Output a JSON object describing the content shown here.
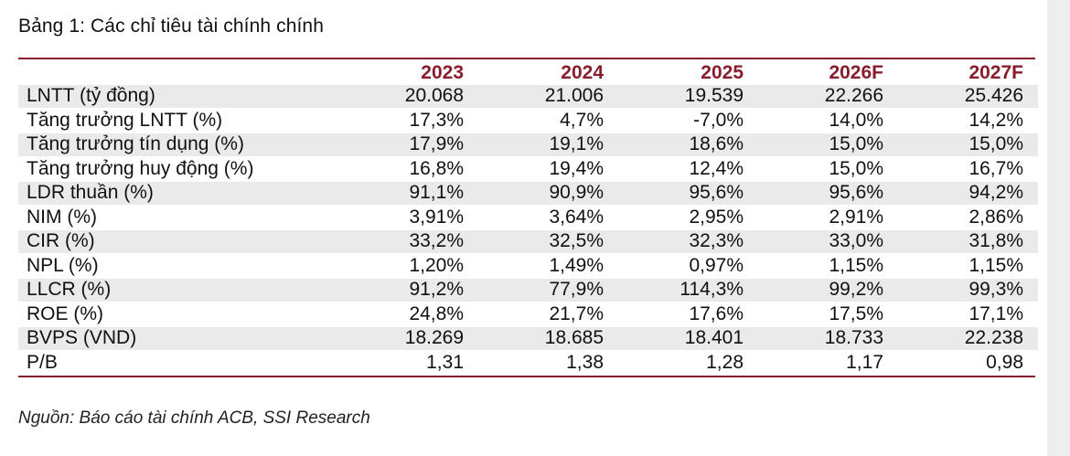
{
  "title": "Bảng 1: Các chỉ tiêu tài chính chính",
  "columns": [
    "2023",
    "2024",
    "2025",
    "2026F",
    "2027F"
  ],
  "rows": [
    {
      "label": "LNTT (tỷ đồng)",
      "values": [
        "20.068",
        "21.006",
        "19.539",
        "22.266",
        "25.426"
      ]
    },
    {
      "label": "Tăng trưởng LNTT (%)",
      "values": [
        "17,3%",
        "4,7%",
        "-7,0%",
        "14,0%",
        "14,2%"
      ]
    },
    {
      "label": "Tăng trưởng tín dụng (%)",
      "values": [
        "17,9%",
        "19,1%",
        "18,6%",
        "15,0%",
        "15,0%"
      ]
    },
    {
      "label": "Tăng trưởng huy động (%)",
      "values": [
        "16,8%",
        "19,4%",
        "12,4%",
        "15,0%",
        "16,7%"
      ]
    },
    {
      "label": "LDR thuần (%)",
      "values": [
        "91,1%",
        "90,9%",
        "95,6%",
        "95,6%",
        "94,2%"
      ]
    },
    {
      "label": "NIM (%)",
      "values": [
        "3,91%",
        "3,64%",
        "2,95%",
        "2,91%",
        "2,86%"
      ]
    },
    {
      "label": "CIR (%)",
      "values": [
        "33,2%",
        "32,5%",
        "32,3%",
        "33,0%",
        "31,8%"
      ]
    },
    {
      "label": "NPL (%)",
      "values": [
        "1,20%",
        "1,49%",
        "0,97%",
        "1,15%",
        "1,15%"
      ]
    },
    {
      "label": "LLCR (%)",
      "values": [
        "91,2%",
        "77,9%",
        "114,3%",
        "99,2%",
        "99,3%"
      ]
    },
    {
      "label": "ROE (%)",
      "values": [
        "24,8%",
        "21,7%",
        "17,6%",
        "17,5%",
        "17,1%"
      ]
    },
    {
      "label": "BVPS (VND)",
      "values": [
        "18.269",
        "18.685",
        "18.401",
        "18.733",
        "22.238"
      ]
    },
    {
      "label": "P/B",
      "values": [
        "1,31",
        "1,38",
        "1,28",
        "1,17",
        "0,98"
      ]
    }
  ],
  "source": "Nguồn: Báo cáo tài chính ACB, SSI Research",
  "colors": {
    "accent": "#8a1c2c",
    "shade": "#eaeaea"
  }
}
